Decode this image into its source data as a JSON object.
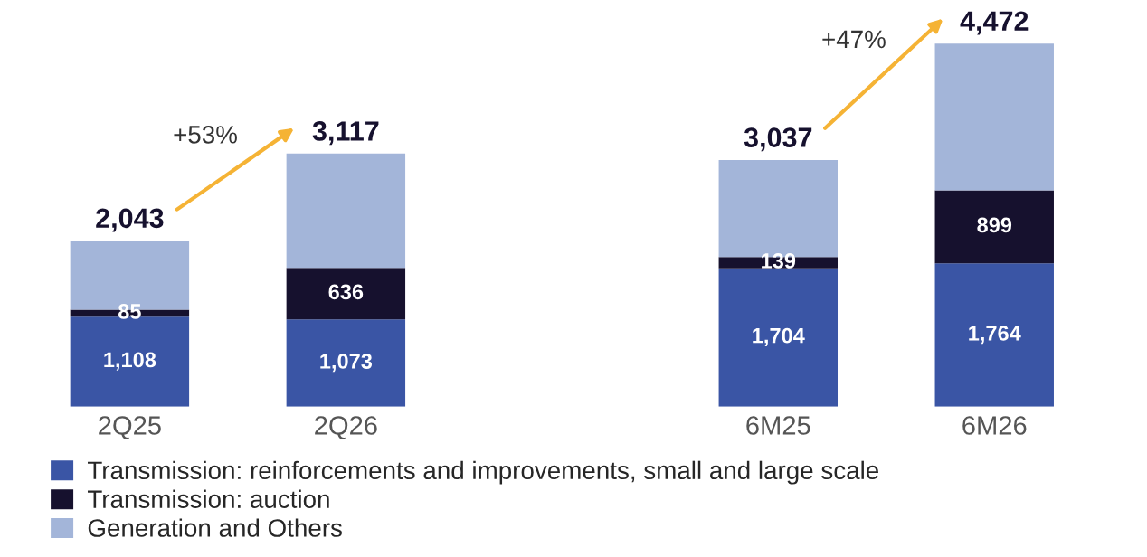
{
  "chart_data": {
    "type": "bar",
    "stacked": true,
    "tick_labels": "x",
    "legend": "bottom",
    "grid": false,
    "categories": [
      "2Q25",
      "2Q26",
      null,
      "6M25",
      "6M26"
    ],
    "series": [
      {
        "name": "Transmission: reinforcements and improvements, small and large scale",
        "color": "#3a55a5",
        "values": [
          1108,
          1073,
          null,
          1704,
          1764
        ],
        "value_labels": [
          "1,108",
          "1,073",
          null,
          "1,704",
          "1,764"
        ]
      },
      {
        "name": "Transmission: auction",
        "color": "#16112e",
        "values": [
          85,
          636,
          null,
          139,
          899
        ],
        "value_labels": [
          "85",
          "636",
          null,
          "139",
          "899"
        ]
      },
      {
        "name": "Generation and Others",
        "color": "#a3b5d9",
        "values": [
          850,
          1408,
          null,
          1194,
          1809
        ]
      }
    ],
    "totals": [
      "2,043",
      "3,117",
      null,
      "3,037",
      "4,472"
    ],
    "annotations": [
      "+53%",
      "+47%"
    ]
  }
}
